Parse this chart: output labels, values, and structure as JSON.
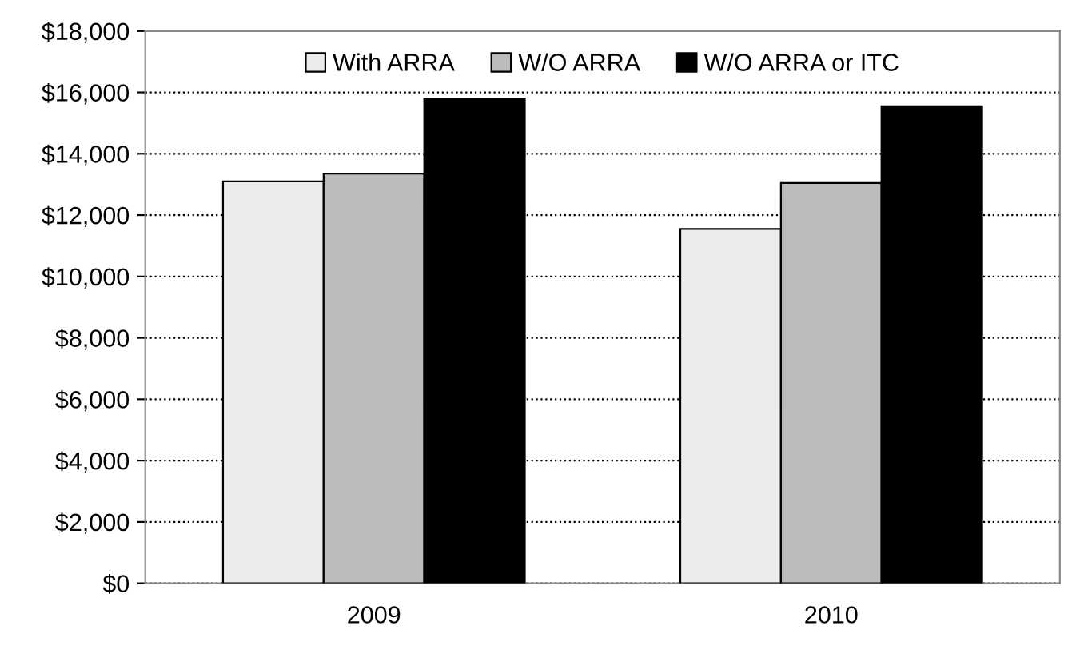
{
  "chart_data": {
    "type": "bar",
    "categories": [
      "2009",
      "2010"
    ],
    "series": [
      {
        "name": "With ARRA",
        "color": "#ececec",
        "values": [
          13100,
          11550
        ]
      },
      {
        "name": "W/O ARRA",
        "color": "#bbbbbb",
        "values": [
          13350,
          13050
        ]
      },
      {
        "name": "W/O ARRA or ITC",
        "color": "#000000",
        "values": [
          15800,
          15550
        ]
      }
    ],
    "ylim": [
      0,
      18000
    ],
    "yticks": [
      {
        "value": 0,
        "label": "$0"
      },
      {
        "value": 2000,
        "label": "$2,000"
      },
      {
        "value": 4000,
        "label": "$4,000"
      },
      {
        "value": 6000,
        "label": "$6,000"
      },
      {
        "value": 8000,
        "label": "$8,000"
      },
      {
        "value": 10000,
        "label": "$10,000"
      },
      {
        "value": 12000,
        "label": "$12,000"
      },
      {
        "value": 14000,
        "label": "$14,000"
      },
      {
        "value": 16000,
        "label": "$16,000"
      },
      {
        "value": 18000,
        "label": "$18,000"
      }
    ],
    "grid": "y",
    "legend": "top"
  }
}
